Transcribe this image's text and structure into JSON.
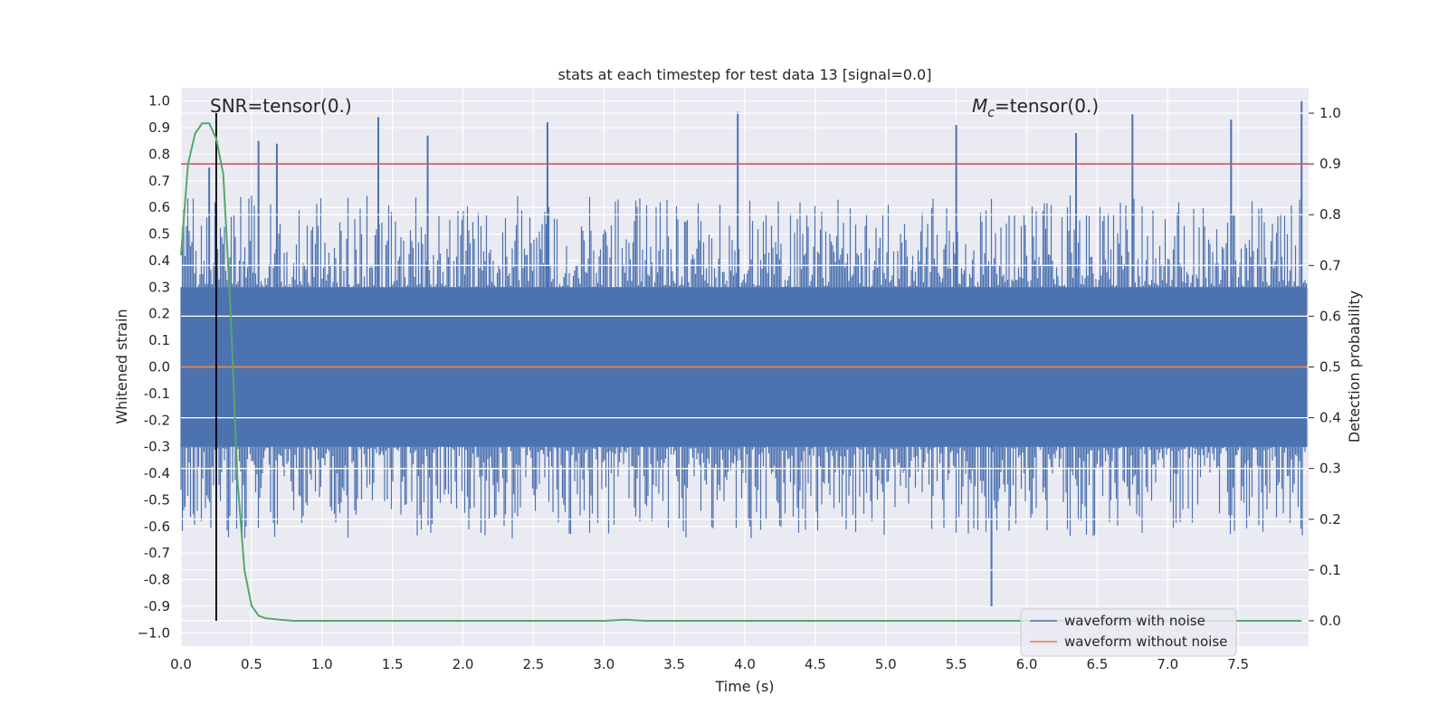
{
  "chart_data": {
    "type": "line",
    "title": "stats at each timestep for test data 13 [signal=0.0]",
    "xlabel": "Time (s)",
    "ylabel": "Whitened strain",
    "y2label": "Detection probability",
    "xlim": [
      0.0,
      8.0
    ],
    "ylim": [
      -1.05,
      1.05
    ],
    "y2lim": [
      -0.05,
      1.05
    ],
    "xticks": [
      "0.0",
      "0.5",
      "1.0",
      "1.5",
      "2.0",
      "2.5",
      "3.0",
      "3.5",
      "4.0",
      "4.5",
      "5.0",
      "5.5",
      "6.0",
      "6.5",
      "7.0",
      "7.5"
    ],
    "yticks": [
      "1.0",
      "0.9",
      "0.8",
      "0.7",
      "0.6",
      "0.5",
      "0.4",
      "0.3",
      "0.2",
      "0.1",
      "0.0",
      "-0.1",
      "-0.2",
      "-0.3",
      "-0.4",
      "-0.5",
      "-0.6",
      "-0.7",
      "-0.8",
      "-0.9",
      "−1.0"
    ],
    "y2ticks": [
      "1.0",
      "0.9",
      "0.8",
      "0.7",
      "0.6",
      "0.5",
      "0.4",
      "0.3",
      "0.2",
      "0.1",
      "0.0"
    ],
    "annotations": {
      "snr": "SNR=tensor(0.)",
      "mc_symbol": "M",
      "mc_sub": "c",
      "mc_value": "=tensor(0.)"
    },
    "threshold_line": {
      "y2": 0.9,
      "color": "#c44e52"
    },
    "marker_line": {
      "x": 0.25,
      "y2_from": 0.0,
      "y2_to": 1.0,
      "color": "#000000"
    },
    "series": [
      {
        "name": "waveform with noise",
        "color": "#4c72b0",
        "kind": "noise",
        "x_range": [
          0.0,
          7.99
        ],
        "core_amplitude": 0.3,
        "typical_peak_max": 0.6,
        "spike_x": [
          0.2,
          0.55,
          0.68,
          1.4,
          1.75,
          2.6,
          3.95,
          5.5,
          5.75,
          6.35,
          6.75,
          7.45,
          7.95
        ],
        "spike_y": [
          0.75,
          0.85,
          0.84,
          0.94,
          0.87,
          0.92,
          0.96,
          0.91,
          -0.9,
          0.88,
          0.95,
          0.93,
          1.0
        ]
      },
      {
        "name": "waveform without noise",
        "color": "#dd8452",
        "x": [
          0.0,
          7.99
        ],
        "y": [
          0.0,
          0.0
        ]
      },
      {
        "name": "detection probability",
        "axis": "right",
        "color": "#55a868",
        "x": [
          0.0,
          0.05,
          0.1,
          0.15,
          0.2,
          0.25,
          0.3,
          0.35,
          0.4,
          0.45,
          0.5,
          0.55,
          0.6,
          0.7,
          0.8,
          1.0,
          2.0,
          3.0,
          3.15,
          3.3,
          4.0,
          5.0,
          6.0,
          7.0,
          7.95
        ],
        "y": [
          0.72,
          0.9,
          0.96,
          0.98,
          0.98,
          0.95,
          0.88,
          0.62,
          0.28,
          0.1,
          0.03,
          0.01,
          0.005,
          0.002,
          0.0,
          0.0,
          0.0,
          0.0,
          0.002,
          0.0,
          0.0,
          0.0,
          0.0,
          0.0,
          0.0
        ]
      }
    ],
    "legend": {
      "position": "lower-right",
      "entries": [
        {
          "label": "waveform with noise",
          "color": "#4c72b0"
        },
        {
          "label": "waveform without noise",
          "color": "#dd8452"
        }
      ]
    }
  }
}
